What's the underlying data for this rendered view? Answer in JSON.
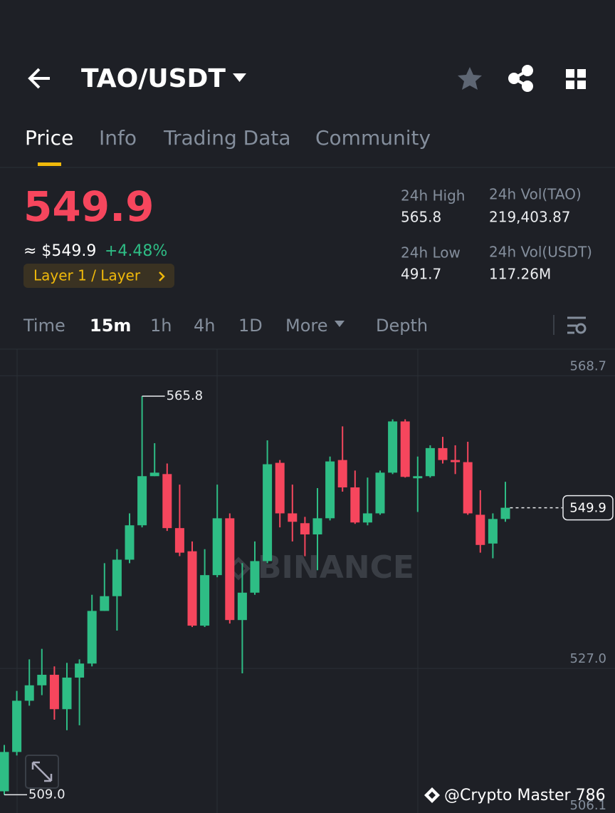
{
  "header": {
    "title": "TAO/USDT"
  },
  "tabs": [
    "Price",
    "Info",
    "Trading Data",
    "Community"
  ],
  "price": {
    "last": "549.9",
    "usd": "≈ $549.9",
    "change": "+4.48%",
    "tag": "Layer 1 / Layer"
  },
  "stats": [
    {
      "label": "24h High",
      "value": "565.8"
    },
    {
      "label": "24h Vol(TAO)",
      "value": "219,403.87"
    },
    {
      "label": "24h Low",
      "value": "491.7"
    },
    {
      "label": "24h Vol(USDT)",
      "value": "117.26M"
    }
  ],
  "intervals": [
    "Time",
    "15m",
    "1h",
    "4h",
    "1D",
    "More",
    "Depth"
  ],
  "watermark": "BINANCE",
  "footer": "@Crypto Master 786",
  "chart_data": {
    "type": "candlestick",
    "open": [
      509.5,
      515.1,
      522.4,
      524.6,
      526.1,
      521.2,
      525.7,
      527.7,
      535.2,
      537.3,
      542.5,
      547.4,
      554.4,
      554.7,
      547.0,
      543.7,
      533.1,
      540.3,
      548.4,
      533.9,
      537.8,
      542.3,
      556.3,
      549.1,
      547.7,
      546.1,
      548.4,
      556.7,
      552.8,
      547.8,
      549.1,
      554.9,
      562.2,
      554.1,
      554.4,
      558.4,
      556.7,
      556.4,
      548.9,
      544.8,
      548.3
    ],
    "high": [
      516.1,
      523.8,
      528.3,
      529.8,
      527.3,
      527.8,
      528.3,
      537.5,
      542.0,
      544.0,
      549.1,
      565.8,
      559.1,
      556.2,
      553.2,
      545.1,
      544.0,
      553.2,
      549.1,
      542.0,
      545.1,
      559.5,
      556.7,
      553.2,
      548.6,
      552.7,
      557.2,
      561.5,
      555.2,
      554.2,
      555.2,
      562.5,
      562.5,
      557.2,
      558.8,
      560.0,
      558.8,
      559.3,
      552.4,
      549.1,
      553.6
    ],
    "low": [
      509.0,
      514.6,
      521.7,
      523.2,
      519.7,
      518.2,
      518.9,
      527.3,
      535.2,
      532.4,
      542.0,
      547.1,
      554.4,
      546.6,
      543.0,
      532.9,
      532.9,
      540.0,
      533.4,
      526.3,
      537.5,
      542.0,
      547.1,
      545.1,
      543.0,
      541.0,
      548.1,
      552.2,
      547.6,
      547.4,
      548.9,
      554.7,
      554.2,
      549.3,
      554.2,
      556.2,
      554.7,
      548.9,
      543.5,
      542.7,
      547.9
    ],
    "close": [
      515.1,
      522.4,
      524.6,
      526.1,
      521.2,
      525.7,
      527.7,
      535.2,
      537.3,
      542.5,
      547.4,
      554.4,
      554.9,
      547.0,
      543.5,
      533.1,
      540.3,
      548.4,
      533.9,
      537.8,
      542.3,
      556.1,
      549.1,
      547.9,
      546.1,
      548.4,
      556.5,
      552.8,
      547.8,
      549.1,
      554.9,
      562.2,
      554.3,
      554.4,
      558.4,
      556.7,
      556.4,
      549.1,
      544.6,
      548.3,
      549.9
    ],
    "up_color": "#2ebd85",
    "down_color": "#f6465d",
    "ylim": [
      506.1,
      572.5
    ],
    "yticks": [
      568.7,
      {
        "value": 527.0,
        "label": "527.0"
      },
      506.1
    ],
    "max_marker": 565.8,
    "min_marker": {
      "value": 509.0,
      "label": "509.0"
    },
    "last_price": 549.9
  }
}
